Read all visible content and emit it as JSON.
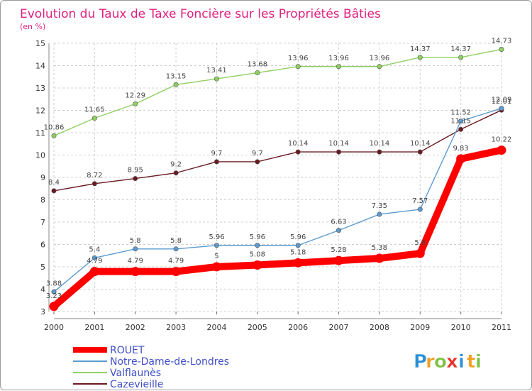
{
  "chart_data": {
    "type": "line",
    "title": "Evolution du Taux de Taxe Foncière sur les Propriétés Bâties",
    "subtitle": "(en %)",
    "x": [
      "2000",
      "2001",
      "2002",
      "2003",
      "2004",
      "2005",
      "2006",
      "2007",
      "2008",
      "2009",
      "2010",
      "2011"
    ],
    "ylim": [
      3,
      15
    ],
    "yticks": [
      3,
      4,
      5,
      6,
      7,
      8,
      9,
      10,
      11,
      12,
      13,
      14,
      15
    ],
    "grid": true,
    "legend_position": "bottom-left",
    "series": [
      {
        "name": "Cazevieille",
        "color": "#6b1a22",
        "values": [
          8.4,
          8.72,
          8.95,
          9.2,
          9.7,
          9.7,
          10.14,
          10.14,
          10.14,
          10.14,
          11.15,
          12.01
        ],
        "labels": [
          "8.4",
          "8.72",
          "8.95",
          "9.2",
          "9.7",
          "9.7",
          "10.14",
          "10.14",
          "10.14",
          "10.14",
          "11.15",
          "12.01"
        ]
      },
      {
        "name": "Valflaunès",
        "color": "#8fd060",
        "values": [
          10.86,
          11.65,
          12.29,
          13.15,
          13.41,
          13.68,
          13.96,
          13.96,
          13.96,
          14.37,
          14.37,
          14.73
        ],
        "labels": [
          "10.86",
          "11.65",
          "12.29",
          "13.15",
          "13.41",
          "13.68",
          "13.96",
          "13.96",
          "13.96",
          "14.37",
          "14.37",
          "14.73"
        ]
      },
      {
        "name": "Notre-Dame-de-Londres",
        "color": "#5b9bd0",
        "values": [
          3.88,
          5.4,
          5.8,
          5.8,
          5.96,
          5.96,
          5.96,
          6.63,
          7.35,
          7.57,
          11.52,
          12.09
        ],
        "labels": [
          "3.88",
          "5.4",
          "5.8",
          "5.8",
          "5.96",
          "5.96",
          "5.96",
          "6.63",
          "7.35",
          "7.57",
          "11.52",
          "12.09"
        ]
      },
      {
        "name": "ROUET",
        "color": "#ff0000",
        "values": [
          3.23,
          4.79,
          4.79,
          4.79,
          5.0,
          5.08,
          5.18,
          5.28,
          5.38,
          5.6,
          9.83,
          10.22
        ],
        "labels": [
          "3.23",
          "4.79",
          "4.79",
          "4.79",
          "5",
          "5.08",
          "5.18",
          "5.28",
          "5.38",
          "5.6",
          "9.83",
          "10.22"
        ]
      }
    ],
    "legend": [
      "ROUET",
      "Notre-Dame-de-Londres",
      "Valflaunès",
      "Cazevieille"
    ]
  },
  "logo": {
    "letters": [
      "P",
      "r",
      "o",
      "x",
      "i",
      "t",
      "i"
    ],
    "colors": [
      "#2b8fd6",
      "#f0a020",
      "#7cc242",
      "#e8322a",
      "#2b8fd6",
      "#f0a020",
      "#7cc242"
    ]
  }
}
